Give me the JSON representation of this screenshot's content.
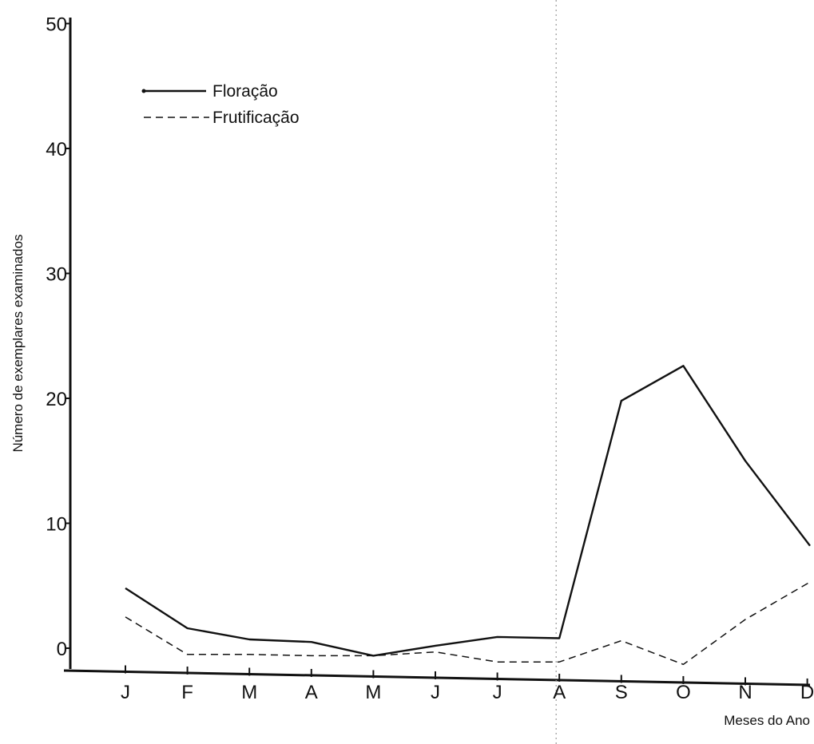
{
  "chart_data": {
    "type": "line",
    "title": "",
    "xlabel": "Meses do Ano",
    "ylabel": "Número de exemplares examinados",
    "categories": [
      "J",
      "F",
      "M",
      "A",
      "M",
      "J",
      "J",
      "A",
      "S",
      "O",
      "N",
      "D"
    ],
    "ylim": [
      0,
      50
    ],
    "yticks": [
      "50",
      "40",
      "30",
      "20",
      "10",
      "0"
    ],
    "grid": false,
    "legend_position": "top-left",
    "series": [
      {
        "name": "Floração",
        "style": "solid",
        "values": [
          4.8,
          1.6,
          0.7,
          0.5,
          -0.6,
          0.2,
          0.9,
          0.8,
          19.8,
          22.6,
          15.0,
          8.2
        ]
      },
      {
        "name": "Frutificação",
        "style": "dashed",
        "values": [
          2.5,
          -0.5,
          -0.5,
          -0.6,
          -0.6,
          -0.3,
          -1.1,
          -1.1,
          0.6,
          -1.3,
          2.3,
          5.3
        ]
      }
    ],
    "reference_line": {
      "x_category_index": 7,
      "style": "dotted"
    },
    "colors": {
      "ink": "#111111",
      "reference": "#9a9a9a"
    }
  }
}
